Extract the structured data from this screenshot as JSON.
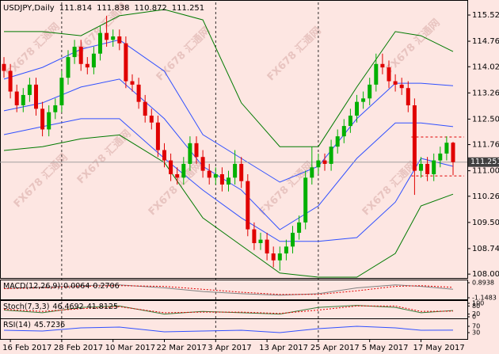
{
  "chart_data": {
    "type": "candlestick",
    "symbol": "USDJPY,Daily",
    "watermark": "FX678 汇通网",
    "categories": [
      null,
      "16 Feb 2017",
      null,
      null,
      null,
      null,
      null,
      null,
      null,
      "28 Feb 2017",
      null,
      null,
      null,
      null,
      null,
      null,
      null,
      "10 Mar 2017",
      null,
      null,
      null,
      null,
      null,
      null,
      null,
      "22 Mar 2017",
      null,
      null,
      null,
      null,
      null,
      null,
      null,
      "3 Apr 2017",
      null,
      null,
      null,
      null,
      null,
      null,
      null,
      "13 Apr 2017",
      null,
      null,
      null,
      null,
      null,
      null,
      null,
      "25 Apr 2017",
      null,
      null,
      null,
      null,
      null,
      null,
      null,
      "5 May 2017",
      null,
      null,
      null,
      null,
      null,
      null,
      null,
      "17 May 2017",
      null,
      null,
      null,
      null,
      null
    ],
    "open": [
      114.1,
      113.9,
      113.3,
      112.9,
      113.2,
      113.5,
      112.8,
      112.2,
      112.7,
      112.9,
      113.7,
      114.3,
      114.6,
      114.1,
      114.0,
      114.4,
      115.0,
      114.8,
      114.9,
      114.7,
      113.6,
      113.5,
      113.0,
      112.6,
      112.4,
      111.6,
      111.3,
      110.9,
      110.8,
      111.2,
      111.8,
      111.4,
      111.0,
      110.8,
      110.9,
      110.6,
      110.8,
      111.2,
      110.7,
      109.3,
      108.9,
      109.0,
      108.6,
      108.4,
      108.6,
      108.8,
      109.2,
      109.5,
      110.8,
      111.1,
      111.3,
      111.2,
      111.7,
      112.0,
      112.3,
      112.6,
      113.0,
      113.1,
      113.5,
      114.1,
      114.0,
      113.6,
      113.5,
      113.4,
      112.9,
      111.0,
      111.2,
      110.9,
      111.3,
      111.5,
      111.814
    ],
    "high": [
      114.3,
      114.1,
      113.5,
      113.4,
      113.7,
      113.7,
      113.0,
      112.9,
      113.1,
      113.9,
      114.5,
      114.8,
      114.8,
      114.3,
      114.6,
      115.2,
      115.5,
      115.1,
      115.1,
      114.9,
      113.8,
      113.7,
      113.2,
      112.8,
      112.6,
      111.8,
      111.5,
      111.1,
      111.4,
      112.0,
      112.0,
      111.6,
      111.2,
      111.1,
      111.1,
      111.0,
      111.6,
      111.4,
      110.9,
      109.5,
      109.2,
      109.2,
      108.8,
      108.8,
      109.0,
      109.4,
      109.7,
      111.0,
      111.7,
      111.5,
      111.5,
      111.9,
      112.2,
      112.5,
      112.8,
      113.2,
      113.3,
      113.7,
      114.4,
      114.4,
      114.2,
      113.8,
      113.7,
      113.6,
      113.1,
      111.4,
      111.4,
      111.5,
      111.7,
      112.0,
      111.838
    ],
    "low": [
      113.7,
      113.1,
      112.7,
      112.7,
      113.0,
      112.6,
      112.0,
      112.0,
      112.5,
      112.7,
      113.5,
      114.1,
      113.9,
      113.8,
      113.8,
      114.2,
      114.6,
      114.6,
      114.5,
      113.4,
      113.3,
      112.8,
      112.4,
      112.2,
      111.4,
      111.1,
      110.7,
      110.6,
      110.6,
      111.0,
      111.2,
      110.8,
      110.6,
      110.6,
      110.4,
      110.4,
      110.6,
      110.5,
      109.1,
      108.7,
      108.7,
      108.4,
      108.2,
      108.1,
      108.4,
      108.6,
      109.0,
      109.3,
      110.6,
      110.9,
      111.0,
      111.0,
      111.5,
      111.8,
      112.1,
      112.4,
      112.8,
      112.9,
      113.3,
      113.8,
      113.4,
      113.3,
      113.2,
      112.7,
      110.3,
      110.8,
      110.7,
      110.7,
      111.1,
      111.3,
      110.872
    ],
    "close": [
      113.9,
      113.3,
      112.9,
      113.2,
      113.5,
      112.8,
      112.2,
      112.7,
      112.9,
      113.7,
      114.3,
      114.6,
      114.1,
      114.0,
      114.4,
      115.0,
      114.8,
      114.9,
      114.7,
      113.6,
      113.5,
      113.0,
      112.6,
      112.4,
      111.6,
      111.3,
      110.9,
      110.8,
      111.2,
      111.8,
      111.4,
      111.0,
      110.8,
      110.9,
      110.6,
      110.8,
      111.2,
      110.7,
      109.3,
      108.9,
      109.0,
      108.6,
      108.4,
      108.6,
      108.8,
      109.2,
      109.5,
      110.8,
      111.1,
      111.3,
      111.2,
      111.7,
      112.0,
      112.3,
      112.6,
      113.0,
      113.1,
      113.5,
      114.1,
      114.0,
      113.6,
      113.5,
      113.4,
      112.9,
      111.0,
      111.2,
      110.9,
      111.3,
      111.5,
      111.814,
      111.251
    ],
    "up_color": "#00b000",
    "down_color": "#e00000",
    "ylim": [
      107.865,
      115.888
    ],
    "yticks": [
      {
        "value": 108.0,
        "label": "108.000"
      },
      {
        "value": 108.74,
        "label": "108.740"
      },
      {
        "value": 109.5,
        "label": "109.500"
      },
      {
        "value": 110.26,
        "label": "110.260"
      },
      {
        "value": 111.0,
        "label": "111.000"
      },
      {
        "value": 111.76,
        "label": "111.760"
      },
      {
        "value": 112.5,
        "label": "112.500"
      },
      {
        "value": 113.26,
        "label": "113.260"
      },
      {
        "value": 114.02,
        "label": "114.020"
      },
      {
        "value": 114.76,
        "label": "114.760"
      },
      {
        "value": 115.52,
        "label": "115.520"
      }
    ],
    "bands": [
      {
        "color": "#007a00",
        "x": [
          0,
          6,
          12,
          18,
          25,
          31,
          37,
          43,
          49,
          55,
          61,
          65,
          70
        ],
        "values": [
          115.04,
          115.04,
          114.92,
          115.5,
          115.68,
          115.38,
          112.97,
          111.7,
          111.7,
          113.43,
          115.04,
          114.92,
          114.46
        ]
      },
      {
        "color": "#007a00",
        "x": [
          0,
          6,
          12,
          18,
          25,
          31,
          37,
          43,
          49,
          55,
          61,
          65,
          70
        ],
        "values": [
          111.59,
          111.7,
          111.93,
          112.04,
          111.24,
          109.63,
          108.83,
          108.03,
          107.91,
          107.91,
          108.6,
          109.98,
          110.32
        ]
      },
      {
        "color": "#3050ff",
        "x": [
          0,
          6,
          12,
          18,
          25,
          31,
          37,
          43,
          49,
          55,
          61,
          65,
          70
        ],
        "values": [
          113.66,
          114.0,
          114.53,
          114.8,
          113.89,
          112.05,
          111.36,
          110.67,
          111.13,
          112.51,
          113.54,
          113.54,
          113.47
        ]
      },
      {
        "color": "#3050ff",
        "x": [
          0,
          6,
          12,
          18,
          25,
          31,
          37,
          43,
          49,
          55,
          61,
          65,
          70
        ],
        "values": [
          112.74,
          112.97,
          113.43,
          113.66,
          112.51,
          111.13,
          110.44,
          109.29,
          109.98,
          111.36,
          112.39,
          112.39,
          112.28
        ]
      },
      {
        "color": "#3050ff",
        "x": [
          0,
          6,
          12,
          18,
          25,
          31,
          37,
          43,
          49,
          55,
          61,
          65,
          70
        ],
        "values": [
          112.05,
          112.28,
          112.51,
          112.51,
          111.36,
          110.44,
          109.63,
          108.95,
          108.95,
          109.06,
          110.09,
          111.36,
          111.13
        ]
      }
    ],
    "levels": [
      111.98,
      110.85
    ],
    "level_color": "#e00000",
    "indicators": [
      {
        "name": "MACD(12,26,9)",
        "ylim": [
          -1.1483,
          0.8938
        ],
        "yticks": [
          0.8938,
          -1.1483
        ],
        "x": [
          0,
          6,
          12,
          18,
          25,
          31,
          37,
          43,
          49,
          55,
          61,
          65,
          70
        ],
        "series": [
          {
            "color": "#808080",
            "values": [
              0.1,
              0.3,
              0.5,
              0.6,
              0.2,
              -0.3,
              -0.6,
              -0.8,
              -0.6,
              0.2,
              0.6,
              0.4,
              0.0064
            ]
          },
          {
            "color": "#e00000",
            "values": [
              0.1,
              0.2,
              0.4,
              0.5,
              0.4,
              0.0,
              -0.4,
              -0.7,
              -0.7,
              -0.2,
              0.4,
              0.5,
              0.2706
            ]
          }
        ]
      },
      {
        "name": "Stoch(7,3,3)",
        "ylim": [
          0,
          100
        ],
        "yticks": [
          100,
          80,
          20,
          0
        ],
        "x": [
          0,
          6,
          12,
          18,
          25,
          31,
          37,
          43,
          49,
          55,
          61,
          65,
          70
        ],
        "series": [
          {
            "color": "#3a7a3a",
            "values": [
              50,
              30,
              70,
              80,
              20,
              40,
              30,
              20,
              70,
              85,
              70,
              30,
              46.4692
            ]
          },
          {
            "color": "#e00000",
            "values": [
              55,
              40,
              60,
              75,
              30,
              35,
              35,
              25,
              50,
              80,
              80,
              40,
              41.8125
            ]
          }
        ]
      },
      {
        "name": "RSI(14)",
        "ylim": [
          0,
          100
        ],
        "yticks": [
          70,
          30
        ],
        "x": [
          0,
          6,
          12,
          18,
          25,
          31,
          37,
          43,
          49,
          55,
          61,
          65,
          70
        ],
        "series": [
          {
            "color": "#3050ff",
            "values": [
              45,
              40,
              60,
              65,
              35,
              40,
              45,
              30,
              55,
              70,
              60,
              45,
              45.7236
            ]
          }
        ]
      }
    ]
  }
}
